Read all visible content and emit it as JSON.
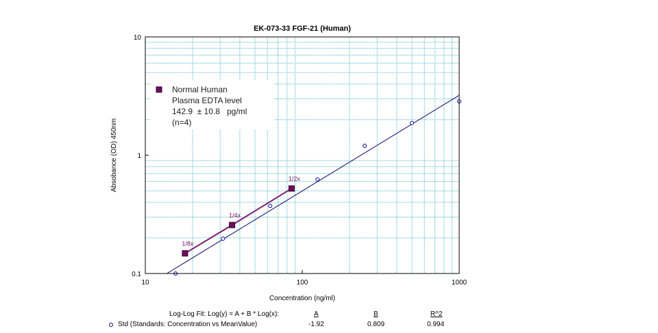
{
  "chart_data": {
    "type": "scatter",
    "title": "EK-073-33 FGF-21 (Human)",
    "xlabel": "Concentration (ng/ml)",
    "ylabel": "Absobance (OD) 450nm",
    "x_scale": "log",
    "y_scale": "log",
    "xlim": [
      10,
      1000
    ],
    "ylim": [
      0.1,
      10
    ],
    "x_ticks": [
      "10",
      "100",
      "1000"
    ],
    "y_ticks": [
      "0.1",
      "1",
      "10"
    ],
    "grid": true,
    "series": [
      {
        "name": "Std (Standards: Concentration vs MeanValue)",
        "marker": "open-circle",
        "color": "#000099",
        "x": [
          15.6,
          31.25,
          62.5,
          125,
          250,
          500,
          1000
        ],
        "y": [
          0.1,
          0.197,
          0.373,
          0.625,
          1.2,
          1.87,
          2.85
        ]
      },
      {
        "name": "Normal Human Plasma EDTA level",
        "marker": "filled-square",
        "color": "#6b0f5e",
        "x": [
          17.9,
          35.7,
          85.5
        ],
        "y": [
          0.148,
          0.257,
          0.523
        ],
        "point_labels": [
          "1/8x",
          "1/4x",
          "1/2x"
        ]
      }
    ],
    "fit_line": {
      "A": -1.92,
      "B": 0.809,
      "x_range": [
        10,
        1000
      ],
      "color": "#000066"
    },
    "legend": {
      "placement": "top-left",
      "lines": [
        "Normal Human",
        "Plasma EDTA level",
        "142.9  ± 10.8   pg/ml",
        "(n=4)"
      ]
    }
  },
  "fit_table": {
    "header_label": "Log-Log Fit: Log(y) = A + B * Log(x):",
    "col_a": "A",
    "col_b": "B",
    "col_r2": "R^2",
    "row_label": "Std (Standards: Concentration vs MeanValue)",
    "row_a": "-1.92",
    "row_b": "0.809",
    "row_r2": "0.994"
  }
}
